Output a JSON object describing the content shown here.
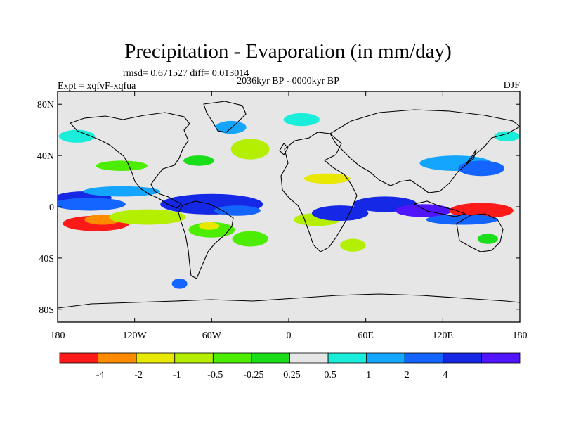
{
  "title": "Precipitation - Evaporation (in mm/day)",
  "stats": "rmsd= 0.671527 diff= 0.013014",
  "experiment": "Expt = xqfvF-xqfua",
  "period": "2036kyr BP - 0000kyr BP",
  "season": "DJF",
  "map": {
    "lon_range": [
      -180,
      180
    ],
    "lat_range": [
      -90,
      90
    ],
    "lon_ticks": [
      {
        "value": -180,
        "label": "180"
      },
      {
        "value": -120,
        "label": "120W"
      },
      {
        "value": -60,
        "label": "60W"
      },
      {
        "value": 0,
        "label": "0"
      },
      {
        "value": 60,
        "label": "60E"
      },
      {
        "value": 120,
        "label": "120E"
      },
      {
        "value": 180,
        "label": "180"
      }
    ],
    "lat_ticks": [
      {
        "value": 80,
        "label": "80N"
      },
      {
        "value": 40,
        "label": "40N"
      },
      {
        "value": 0,
        "label": "0"
      },
      {
        "value": -40,
        "label": "40S"
      },
      {
        "value": -80,
        "label": "80S"
      }
    ],
    "background_color": "#e6e6e6"
  },
  "colorbar": {
    "colors": [
      "#ff1a1a",
      "#ff8c00",
      "#e8e800",
      "#b4ee00",
      "#4ced00",
      "#1ade1a",
      "#e6e6e6",
      "#1aeeda",
      "#14a6ff",
      "#1464ff",
      "#1428e6",
      "#5014ff"
    ],
    "labels": [
      "-4",
      "-2",
      "-1",
      "-0.5",
      "-0.25",
      "0.25",
      "0.5",
      "1",
      "2",
      "4"
    ]
  },
  "field_contours": [
    {
      "lon": -160,
      "lat": 7,
      "rx": 22,
      "ry": 5,
      "level": 10
    },
    {
      "lon": -155,
      "lat": 2,
      "rx": 28,
      "ry": 5,
      "level": 9
    },
    {
      "lon": -130,
      "lat": 12,
      "rx": 30,
      "ry": 4,
      "level": 8
    },
    {
      "lon": -150,
      "lat": -13,
      "rx": 26,
      "ry": 6,
      "level": 0
    },
    {
      "lon": -145,
      "lat": -10,
      "rx": 14,
      "ry": 4,
      "level": 1
    },
    {
      "lon": -110,
      "lat": -8,
      "rx": 30,
      "ry": 6,
      "level": 3
    },
    {
      "lon": -60,
      "lat": 2,
      "rx": 40,
      "ry": 8,
      "level": 10
    },
    {
      "lon": -40,
      "lat": -3,
      "rx": 18,
      "ry": 4,
      "level": 9
    },
    {
      "lon": -60,
      "lat": -18,
      "rx": 18,
      "ry": 6,
      "level": 4
    },
    {
      "lon": -62,
      "lat": -15,
      "rx": 8,
      "ry": 3,
      "level": 2
    },
    {
      "lon": 30,
      "lat": 22,
      "rx": 18,
      "ry": 4,
      "level": 2
    },
    {
      "lon": 22,
      "lat": -10,
      "rx": 18,
      "ry": 5,
      "level": 3
    },
    {
      "lon": 40,
      "lat": -5,
      "rx": 22,
      "ry": 6,
      "level": 10
    },
    {
      "lon": 75,
      "lat": 2,
      "rx": 25,
      "ry": 6,
      "level": 10
    },
    {
      "lon": 105,
      "lat": -3,
      "rx": 22,
      "ry": 5,
      "level": 11
    },
    {
      "lon": 150,
      "lat": -3,
      "rx": 25,
      "ry": 6,
      "level": 0
    },
    {
      "lon": 135,
      "lat": -10,
      "rx": 28,
      "ry": 4,
      "level": 9
    },
    {
      "lon": 130,
      "lat": 34,
      "rx": 28,
      "ry": 6,
      "level": 8
    },
    {
      "lon": 150,
      "lat": 30,
      "rx": 18,
      "ry": 6,
      "level": 9
    },
    {
      "lon": -30,
      "lat": 45,
      "rx": 15,
      "ry": 8,
      "level": 3
    },
    {
      "lon": -70,
      "lat": 36,
      "rx": 12,
      "ry": 4,
      "level": 5
    },
    {
      "lon": -130,
      "lat": 32,
      "rx": 20,
      "ry": 4,
      "level": 4
    },
    {
      "lon": -165,
      "lat": 55,
      "rx": 14,
      "ry": 5,
      "level": 7
    },
    {
      "lon": -45,
      "lat": 62,
      "rx": 12,
      "ry": 5,
      "level": 8
    },
    {
      "lon": 10,
      "lat": 68,
      "rx": 14,
      "ry": 5,
      "level": 7
    },
    {
      "lon": 170,
      "lat": 55,
      "rx": 10,
      "ry": 4,
      "level": 7
    },
    {
      "lon": -30,
      "lat": -25,
      "rx": 14,
      "ry": 6,
      "level": 4
    },
    {
      "lon": -85,
      "lat": -60,
      "rx": 6,
      "ry": 4,
      "level": 9
    },
    {
      "lon": 50,
      "lat": -30,
      "rx": 10,
      "ry": 5,
      "level": 3
    },
    {
      "lon": 155,
      "lat": -25,
      "rx": 8,
      "ry": 4,
      "level": 5
    }
  ]
}
